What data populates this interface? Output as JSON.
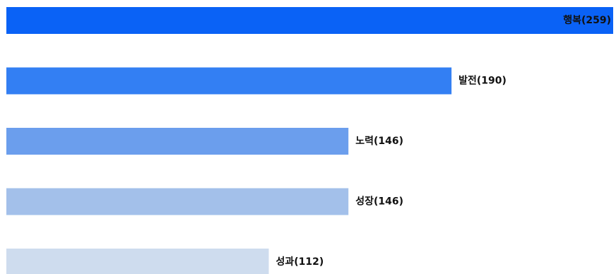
{
  "chart_data": {
    "type": "bar",
    "orientation": "horizontal",
    "categories": [
      "행복",
      "발전",
      "노력",
      "성장",
      "성과"
    ],
    "values": [
      259,
      190,
      146,
      146,
      112
    ],
    "labels": [
      "행복(259)",
      "발전(190)",
      "노력(146)",
      "성장(146)",
      "성과(112)"
    ],
    "colors": [
      "#0a62f6",
      "#337ff3",
      "#6b9eed",
      "#a3c0ea",
      "#cedcee"
    ],
    "xlim": [
      0,
      259
    ],
    "title": "",
    "xlabel": "",
    "ylabel": "",
    "grid": false,
    "legend": "none"
  }
}
